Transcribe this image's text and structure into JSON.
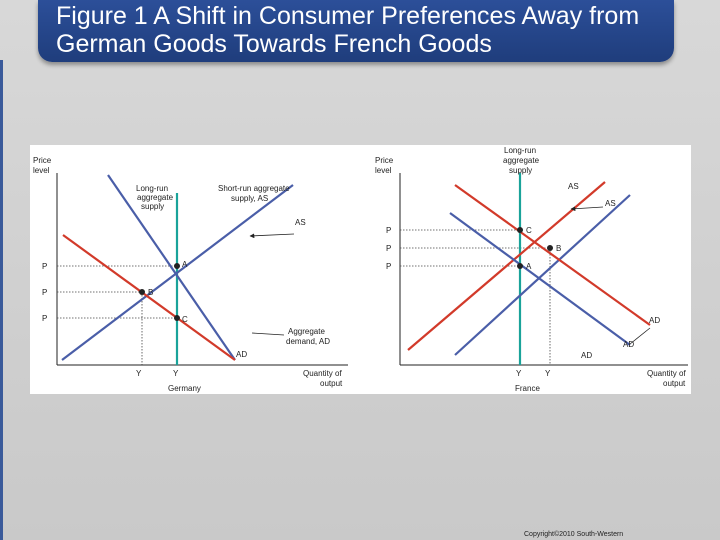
{
  "slide": {
    "title": "Figure 1 A Shift in Consumer Preferences Away from German Goods Towards French Goods",
    "copyright": "Copyright©2010 South-Western"
  },
  "germany": {
    "price_axis_line1": "Price",
    "price_axis_line2": "level",
    "quantity_axis_line1": "Quantity of",
    "quantity_axis_line2": "output",
    "country": "Germany",
    "lras_line1": "Long-run",
    "lras_line2": "aggregate",
    "lras_line3": "supply",
    "sras_line1": "Short-run aggregate",
    "sras_line2": "supply, AS",
    "as_curve": "AS",
    "ad_line1": "Aggregate",
    "ad_line2": "demand, AD",
    "ad2_curve": "AD",
    "p1": "P",
    "p2": "P",
    "p3": "P",
    "y1": "Y",
    "y2": "Y",
    "point_a": "A",
    "point_b": "B",
    "point_c": "C"
  },
  "france": {
    "price_axis_line1": "Price",
    "price_axis_line2": "level",
    "quantity_axis_line1": "Quantity of",
    "quantity_axis_line2": "output",
    "country": "France",
    "lras_line1": "Long-run",
    "lras_line2": "aggregate",
    "lras_line3": "supply",
    "as2_curve": "AS",
    "as1_curve": "AS",
    "ad1_curve": "AD",
    "ad2_curve": "AD",
    "ad3_curve": "AD",
    "p1": "P",
    "p2": "P",
    "p3": "P",
    "y1": "Y",
    "y2": "Y",
    "point_a": "A",
    "point_b": "B",
    "point_c": "C"
  },
  "colors": {
    "title_bg": "#2c4f99",
    "lras": "#1aa39a",
    "supply": "#4a5ea8",
    "demand": "#d23a2a",
    "axis": "#222222"
  }
}
